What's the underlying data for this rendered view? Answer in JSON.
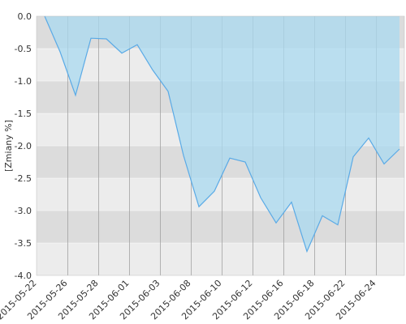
{
  "chart_data": {
    "type": "area",
    "y_label": "[Zmiany %]",
    "categories": [
      "2015-05-22",
      null,
      "2015-05-26",
      null,
      "2015-05-28",
      null,
      "2015-06-01",
      null,
      "2015-06-03",
      null,
      "2015-06-08",
      null,
      "2015-06-10",
      null,
      "2015-06-12",
      null,
      "2015-06-16",
      null,
      "2015-06-18",
      null,
      "2015-06-22",
      null,
      "2015-06-24",
      null
    ],
    "values": [
      0,
      -0.55,
      -1.22,
      -0.34,
      -0.35,
      -0.57,
      -0.44,
      -0.83,
      -1.16,
      -2.15,
      -2.94,
      -2.7,
      -2.19,
      -2.25,
      -2.8,
      -3.19,
      -2.87,
      -3.63,
      -3.08,
      -3.22,
      -2.17,
      -1.88,
      -2.28,
      -2.05
    ],
    "color": "#5aaae6",
    "fill_color": "#a9daf0",
    "ylim": [
      -4,
      0
    ],
    "yticks": [
      {
        "value": 0,
        "label": "0.0"
      },
      -0.5,
      {
        "value": -1,
        "label": "-1.0"
      },
      -1.5,
      {
        "value": -2,
        "label": "-2.0"
      },
      -2.5,
      {
        "value": -3,
        "label": "-3.0"
      },
      -3.5,
      {
        "value": -4,
        "label": "-4.0"
      }
    ],
    "grid": true
  }
}
